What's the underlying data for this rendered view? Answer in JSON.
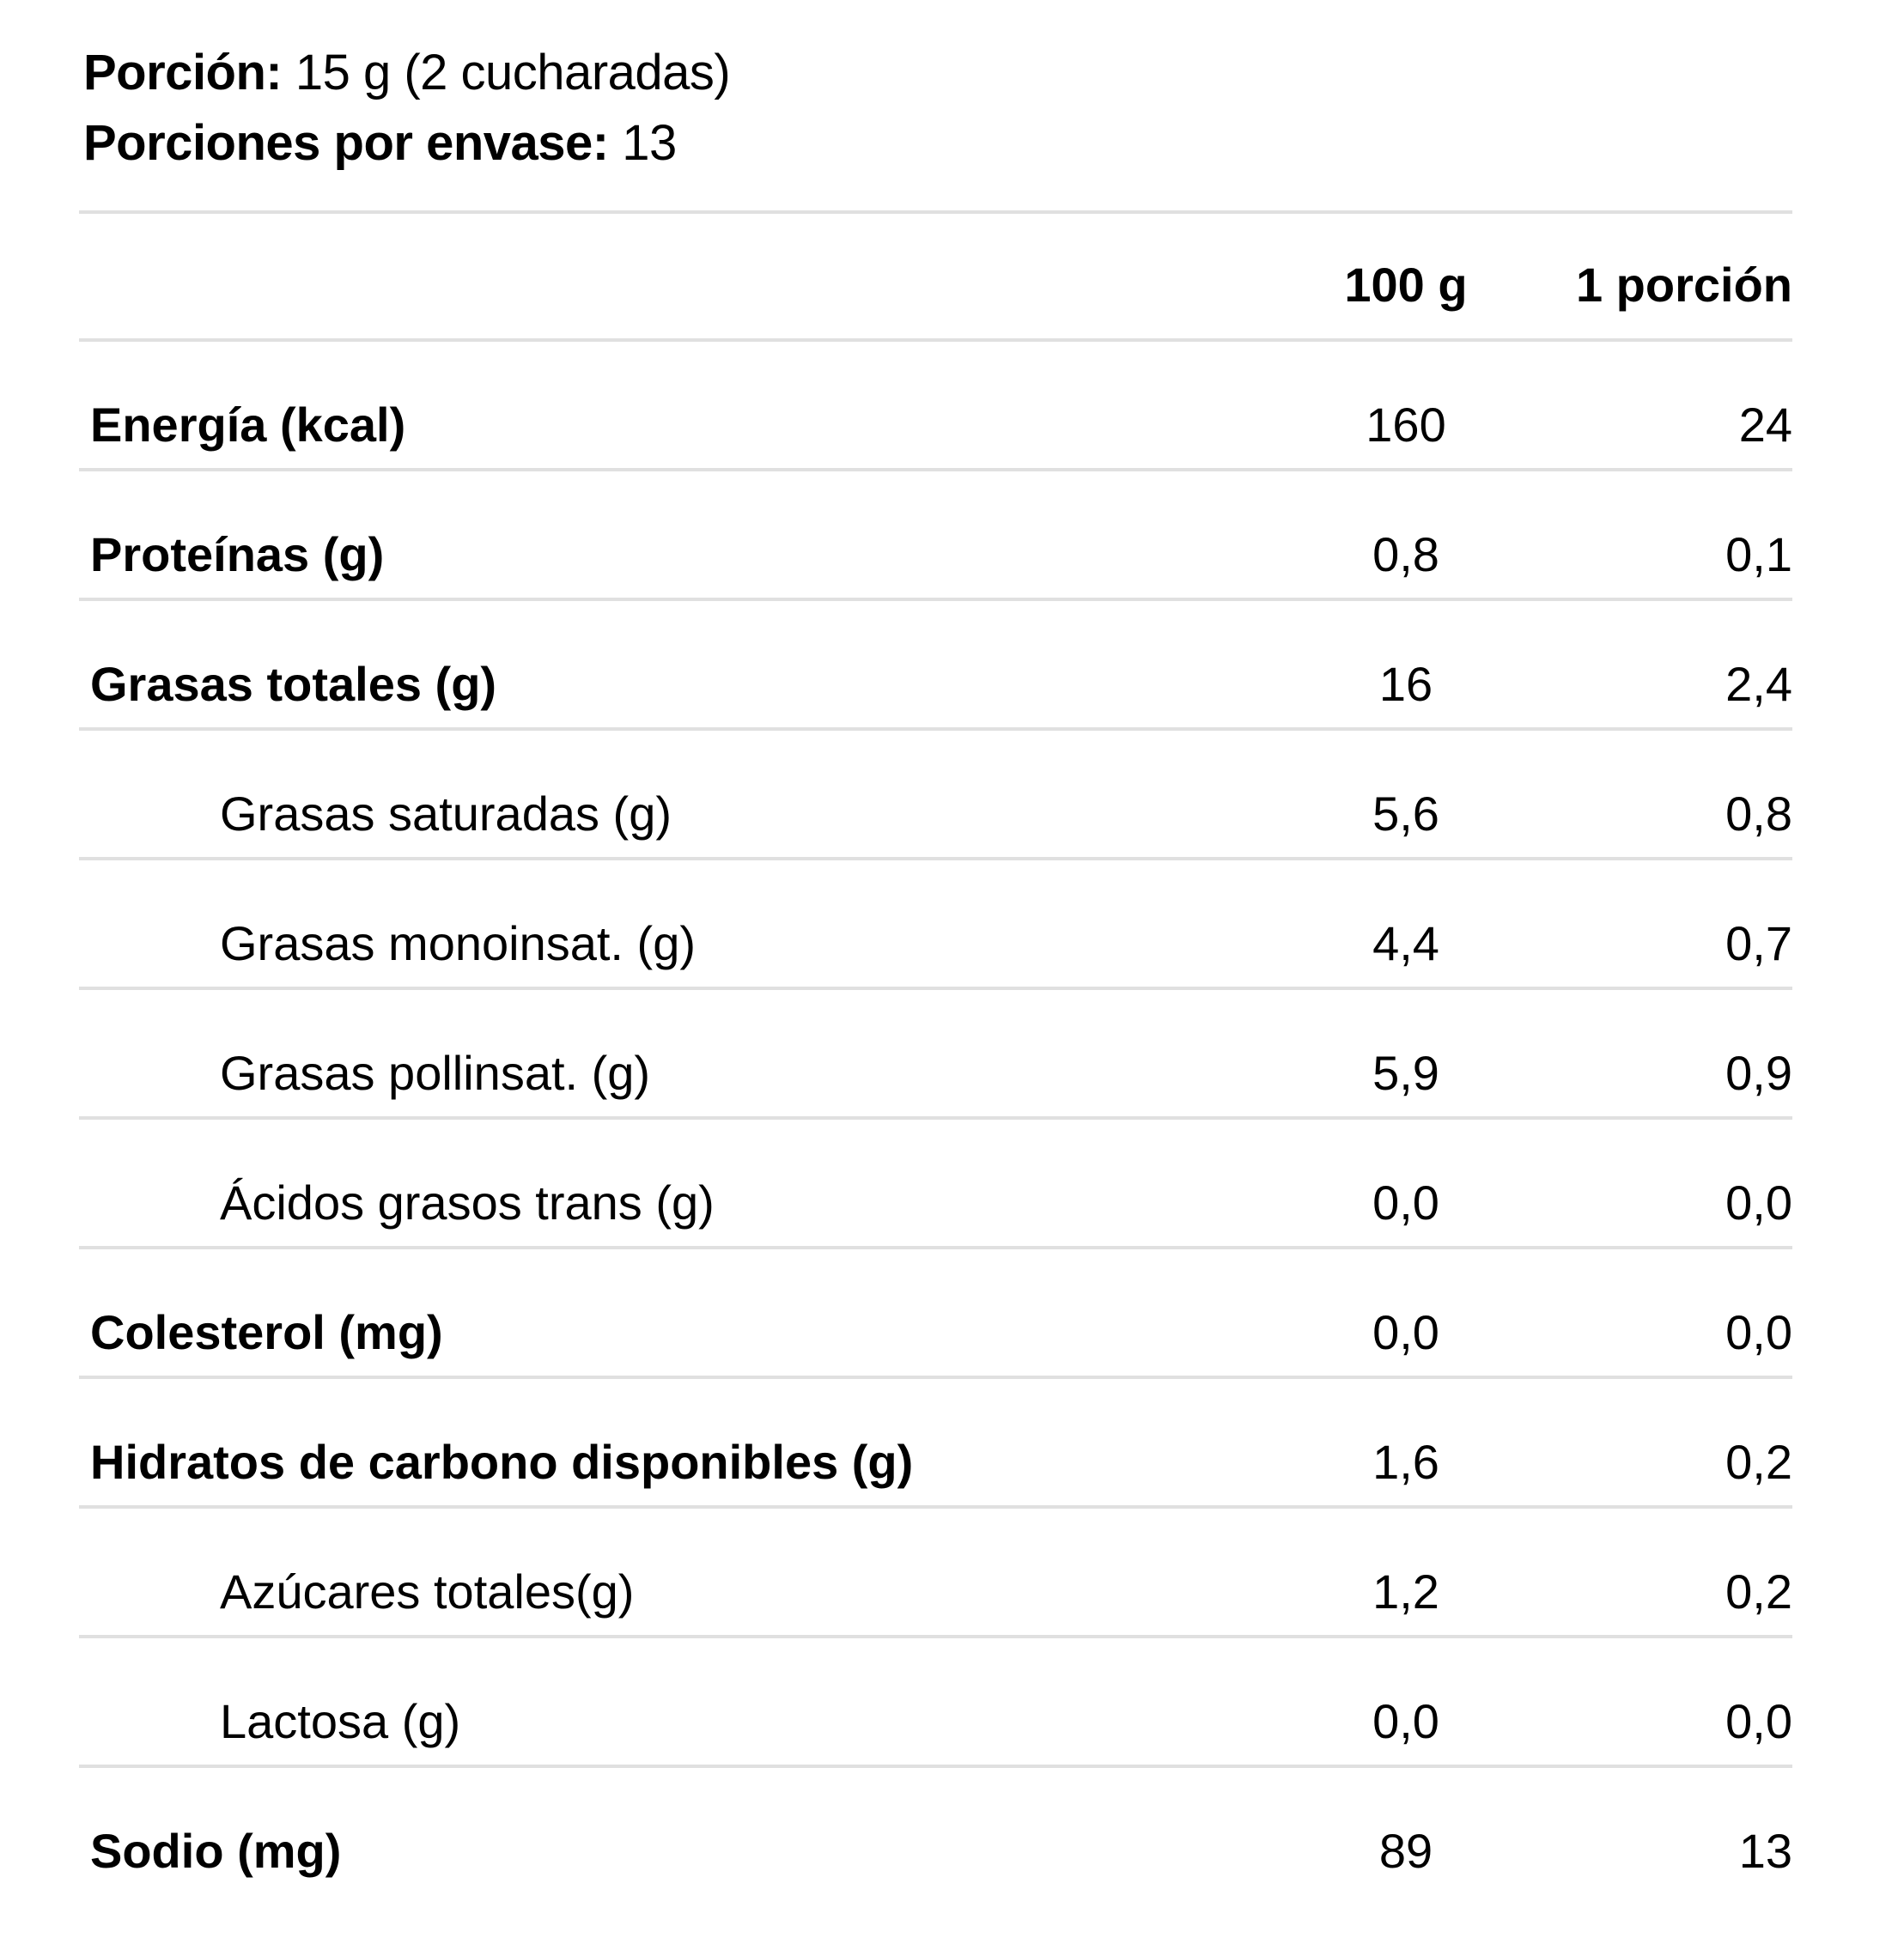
{
  "page": {
    "background": "#ffffff",
    "text_color": "#000000",
    "divider_color": "#e0e0e0"
  },
  "serving": {
    "portion_label": "Porción:",
    "portion_value": "15 g (2 cucharadas)",
    "servings_label": "Porciones por envase:",
    "servings_value": "13"
  },
  "table": {
    "col_100g": "100 g",
    "col_portion": "1 porción",
    "rows": [
      {
        "label": "Energía (kcal)",
        "per_100g": "160",
        "per_portion": "24",
        "style": "bold"
      },
      {
        "label": "Proteínas (g)",
        "per_100g": "0,8",
        "per_portion": "0,1",
        "style": "bold"
      },
      {
        "label": "Grasas totales (g)",
        "per_100g": "16",
        "per_portion": "2,4",
        "style": "bold"
      },
      {
        "label": "Grasas saturadas (g)",
        "per_100g": "5,6",
        "per_portion": "0,8",
        "style": "indent"
      },
      {
        "label": "Grasas monoinsat. (g)",
        "per_100g": "4,4",
        "per_portion": "0,7",
        "style": "indent"
      },
      {
        "label": "Grasas pollinsat. (g)",
        "per_100g": "5,9",
        "per_portion": "0,9",
        "style": "indent"
      },
      {
        "label": "Ácidos grasos trans (g)",
        "per_100g": "0,0",
        "per_portion": "0,0",
        "style": "indent"
      },
      {
        "label": "Colesterol (mg)",
        "per_100g": "0,0",
        "per_portion": "0,0",
        "style": "bold"
      },
      {
        "label": "Hidratos de carbono disponibles (g)",
        "per_100g": "1,6",
        "per_portion": "0,2",
        "style": "bold"
      },
      {
        "label": "Azúcares totales(g)",
        "per_100g": "1,2",
        "per_portion": "0,2",
        "style": "indent"
      },
      {
        "label": "Lactosa (g)",
        "per_100g": "0,0",
        "per_portion": "0,0",
        "style": "indent"
      },
      {
        "label": "Sodio (mg)",
        "per_100g": "89",
        "per_portion": "13",
        "style": "bold"
      }
    ]
  }
}
